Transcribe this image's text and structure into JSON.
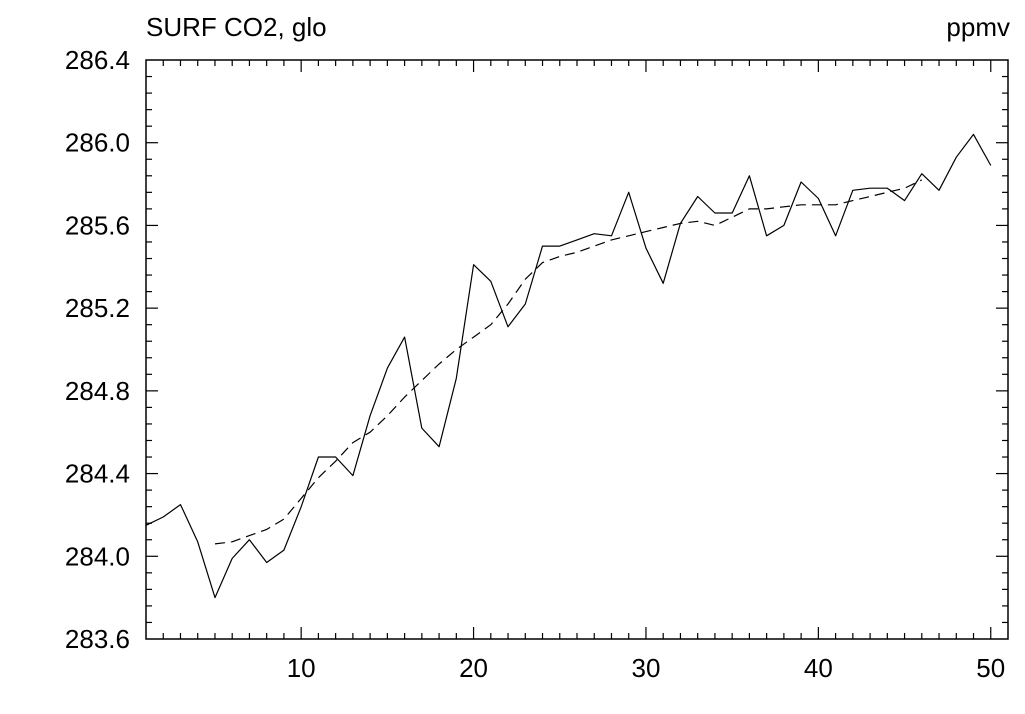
{
  "chart_data": {
    "type": "line",
    "title": "SURF CO2, glo",
    "units": "ppmv",
    "xlabel": "",
    "ylabel": "",
    "xlim": [
      1,
      51
    ],
    "ylim": [
      283.6,
      286.4
    ],
    "grid": false,
    "x_ticks": [
      10,
      20,
      30,
      40,
      50
    ],
    "y_ticks": [
      "283.6",
      "284.0",
      "284.4",
      "284.8",
      "285.2",
      "285.6",
      "286.0",
      "286.4"
    ],
    "series": [
      {
        "style": "solid",
        "x": [
          1,
          2,
          3,
          4,
          5,
          6,
          7,
          8,
          9,
          10,
          11,
          12,
          13,
          14,
          15,
          16,
          17,
          18,
          19,
          20,
          21,
          22,
          23,
          24,
          25,
          26,
          27,
          28,
          29,
          30,
          31,
          32,
          33,
          34,
          35,
          36,
          37,
          38,
          39,
          40,
          41,
          42,
          43,
          44,
          45,
          46,
          47,
          48,
          49,
          50
        ],
        "values": [
          284.15,
          284.19,
          284.25,
          284.07,
          283.8,
          283.99,
          284.08,
          283.97,
          284.03,
          284.24,
          284.48,
          284.48,
          284.39,
          284.68,
          284.91,
          285.06,
          284.62,
          284.53,
          284.86,
          285.41,
          285.33,
          285.11,
          285.22,
          285.5,
          285.5,
          285.53,
          285.56,
          285.55,
          285.76,
          285.49,
          285.32,
          285.61,
          285.74,
          285.66,
          285.66,
          285.84,
          285.55,
          285.6,
          285.81,
          285.73,
          285.55,
          285.77,
          285.78,
          285.78,
          285.72,
          285.85,
          285.77,
          285.93,
          286.04,
          285.89
        ]
      },
      {
        "style": "dashed",
        "x": [
          5,
          6,
          7,
          8,
          9,
          10,
          11,
          12,
          13,
          14,
          15,
          16,
          17,
          18,
          19,
          20,
          21,
          22,
          23,
          24,
          25,
          26,
          27,
          28,
          29,
          30,
          31,
          32,
          33,
          34,
          35,
          36,
          37,
          38,
          39,
          40,
          41,
          42,
          43,
          44,
          45,
          46
        ],
        "values": [
          284.06,
          284.07,
          284.1,
          284.13,
          284.18,
          284.28,
          284.38,
          284.46,
          284.55,
          284.6,
          284.68,
          284.77,
          284.85,
          284.93,
          285.0,
          285.06,
          285.12,
          285.22,
          285.34,
          285.42,
          285.45,
          285.47,
          285.5,
          285.53,
          285.55,
          285.57,
          285.59,
          285.61,
          285.62,
          285.6,
          285.64,
          285.68,
          285.68,
          285.69,
          285.7,
          285.7,
          285.7,
          285.72,
          285.74,
          285.76,
          285.78,
          285.82
        ]
      }
    ]
  }
}
